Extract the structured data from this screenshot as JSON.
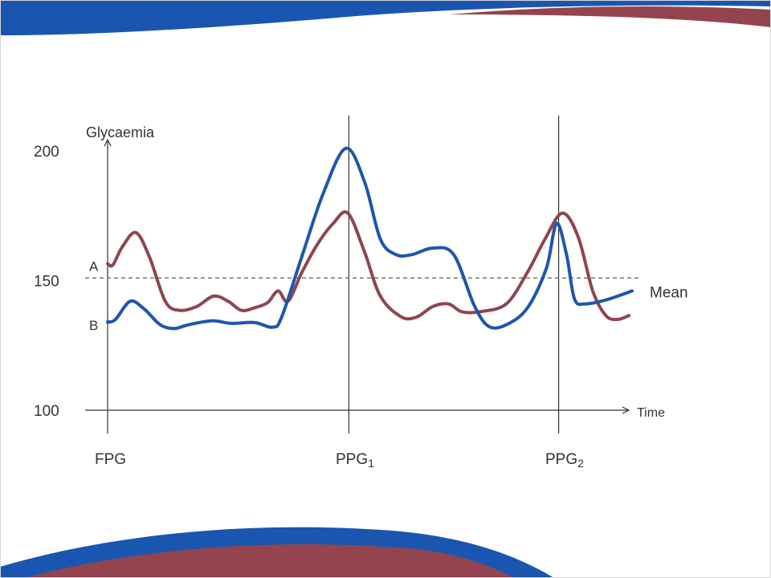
{
  "colors": {
    "series_a": "#8e4650",
    "series_b": "#1f56ad",
    "mean_line": "#777777",
    "axis": "#333333",
    "band_blue": "#1a56b0",
    "band_red": "#94444e"
  },
  "chart_data": {
    "type": "line",
    "ylabel": "Glycaemia",
    "xlabel": "Time",
    "yticks": [
      {
        "label": "200",
        "value": 200
      },
      {
        "label": "150",
        "value": 150
      },
      {
        "label": "100",
        "value": 100
      }
    ],
    "ylim": [
      100,
      205
    ],
    "xlim": [
      0,
      100
    ],
    "x_markers": [
      {
        "base": "FPG",
        "sub": "",
        "x": 0,
        "line": false
      },
      {
        "base": "PPG",
        "sub": "1",
        "x": 46,
        "line": true
      },
      {
        "base": "PPG",
        "sub": "2",
        "x": 86,
        "line": true
      }
    ],
    "mean": {
      "label": "Mean",
      "value": 151
    },
    "series": [
      {
        "name": "A",
        "color": "#8e4650",
        "points": [
          [
            0,
            156.5
          ],
          [
            1,
            156
          ],
          [
            2.8,
            163
          ],
          [
            5.4,
            168.5
          ],
          [
            8,
            159
          ],
          [
            11,
            142
          ],
          [
            13.7,
            138.5
          ],
          [
            17,
            140
          ],
          [
            20.2,
            144
          ],
          [
            23,
            142
          ],
          [
            25.5,
            138.5
          ],
          [
            28,
            139.5
          ],
          [
            30.5,
            141.5
          ],
          [
            32.5,
            146
          ],
          [
            34.4,
            142
          ],
          [
            37,
            153
          ],
          [
            40,
            164
          ],
          [
            43,
            172
          ],
          [
            45.8,
            176
          ],
          [
            49,
            161
          ],
          [
            52,
            144
          ],
          [
            56,
            136
          ],
          [
            59,
            136
          ],
          [
            62,
            140
          ],
          [
            65,
            141
          ],
          [
            67.5,
            138
          ],
          [
            71,
            138
          ],
          [
            76,
            141
          ],
          [
            80,
            153
          ],
          [
            83.4,
            166
          ],
          [
            86.7,
            176
          ],
          [
            89.7,
            167
          ],
          [
            92.5,
            146
          ],
          [
            95,
            136.5
          ],
          [
            97.2,
            135
          ],
          [
            99.4,
            136.5
          ]
        ]
      },
      {
        "name": "B",
        "color": "#1f56ad",
        "points": [
          [
            0,
            134
          ],
          [
            1.5,
            135
          ],
          [
            4.3,
            142
          ],
          [
            7,
            139
          ],
          [
            10,
            133
          ],
          [
            12.7,
            131.5
          ],
          [
            15.5,
            133
          ],
          [
            20,
            134.5
          ],
          [
            23.5,
            133.5
          ],
          [
            28,
            133.8
          ],
          [
            31.5,
            132
          ],
          [
            33.2,
            136
          ],
          [
            37,
            159
          ],
          [
            41,
            183
          ],
          [
            45.4,
            201
          ],
          [
            49,
            188
          ],
          [
            52,
            166
          ],
          [
            55,
            160
          ],
          [
            58,
            160
          ],
          [
            62,
            162.5
          ],
          [
            66,
            160
          ],
          [
            70,
            140
          ],
          [
            73,
            132
          ],
          [
            77,
            134
          ],
          [
            80.4,
            140.5
          ],
          [
            83.7,
            155
          ],
          [
            85.6,
            172
          ],
          [
            87.5,
            160
          ],
          [
            89,
            143
          ],
          [
            91,
            141
          ],
          [
            95,
            142.5
          ],
          [
            100,
            146
          ]
        ]
      }
    ],
    "annotations": [
      {
        "text": "A",
        "series": "A"
      },
      {
        "text": "B",
        "series": "B"
      }
    ]
  }
}
